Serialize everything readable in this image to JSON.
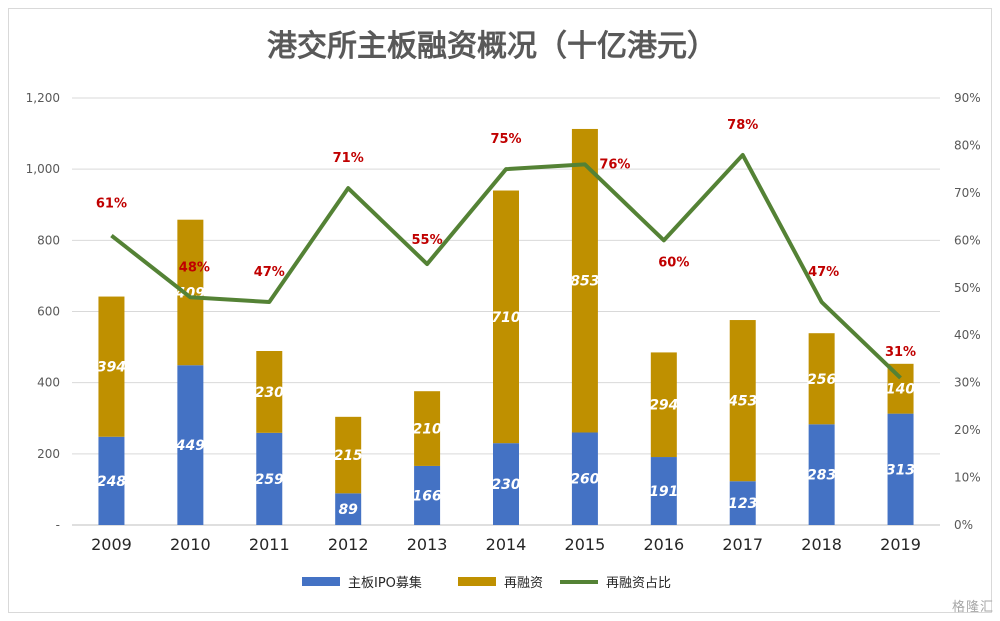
{
  "chart_data": {
    "type": "bar",
    "stacked": true,
    "title": "港交所主板融资概况（十亿港元）",
    "categories": [
      "2009",
      "2010",
      "2011",
      "2012",
      "2013",
      "2014",
      "2015",
      "2016",
      "2017",
      "2018",
      "2019"
    ],
    "series": [
      {
        "name": "主板IPO募集",
        "type": "bar",
        "axis": "left",
        "color": "#4472c4",
        "values": [
          248,
          449,
          259,
          89,
          166,
          230,
          260,
          191,
          123,
          283,
          313
        ]
      },
      {
        "name": "再融资",
        "type": "bar",
        "axis": "left",
        "color": "#bf9000",
        "values": [
          394,
          409,
          230,
          215,
          210,
          710,
          853,
          294,
          453,
          256,
          140
        ]
      },
      {
        "name": "再融资占比",
        "type": "line",
        "axis": "right",
        "color": "#548235",
        "values": [
          61,
          48,
          47,
          71,
          55,
          75,
          76,
          60,
          78,
          47,
          31
        ],
        "labels": [
          "61%",
          "48%",
          "47%",
          "71%",
          "55%",
          "75%",
          "76%",
          "60%",
          "78%",
          "47%",
          "31%"
        ]
      }
    ],
    "y_left": {
      "min": 0,
      "max": 1200,
      "ticks": [
        "-",
        "200",
        "400",
        "600",
        "800",
        "1,000",
        "1,200"
      ],
      "tick_values": [
        0,
        200,
        400,
        600,
        800,
        1000,
        1200
      ]
    },
    "y_right": {
      "min": 0,
      "max": 90,
      "ticks": [
        "0%",
        "10%",
        "20%",
        "30%",
        "40%",
        "50%",
        "60%",
        "70%",
        "80%",
        "90%"
      ],
      "tick_values": [
        0,
        10,
        20,
        30,
        40,
        50,
        60,
        70,
        80,
        90
      ]
    },
    "grid": true,
    "legend_position": "bottom"
  },
  "watermark": "格隆汇"
}
